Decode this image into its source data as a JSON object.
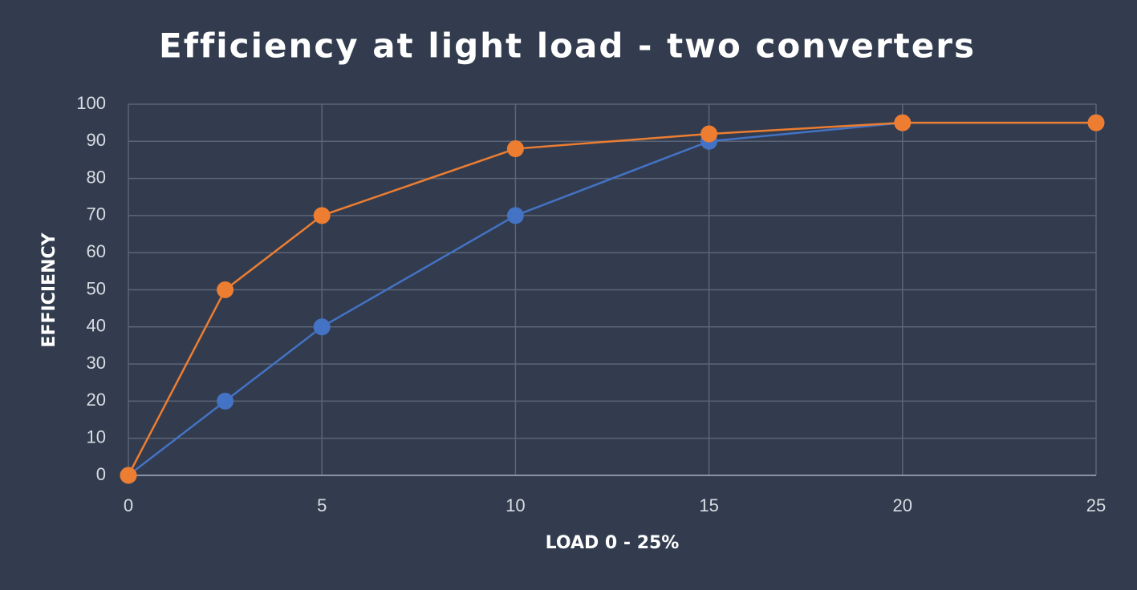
{
  "chart_data": {
    "type": "line",
    "title": "Efficiency at light load - two converters",
    "x_label": "LOAD 0 - 25%",
    "y_label": "EFFICIENCY",
    "x": [
      0,
      2.5,
      5,
      10,
      15,
      20,
      25
    ],
    "series": [
      {
        "color": "#4472c4",
        "values": [
          0,
          20,
          40,
          70,
          90,
          95,
          95
        ]
      },
      {
        "color": "#ed7d31",
        "values": [
          0,
          50,
          70,
          88,
          92,
          95,
          95
        ]
      }
    ],
    "xlim": [
      0,
      25
    ],
    "xticks": [
      0,
      5,
      10,
      15,
      20,
      25
    ],
    "ylim": [
      0,
      100
    ],
    "yticks": [
      0,
      10,
      20,
      30,
      40,
      50,
      60,
      70,
      80,
      90,
      100
    ],
    "grid": true
  }
}
